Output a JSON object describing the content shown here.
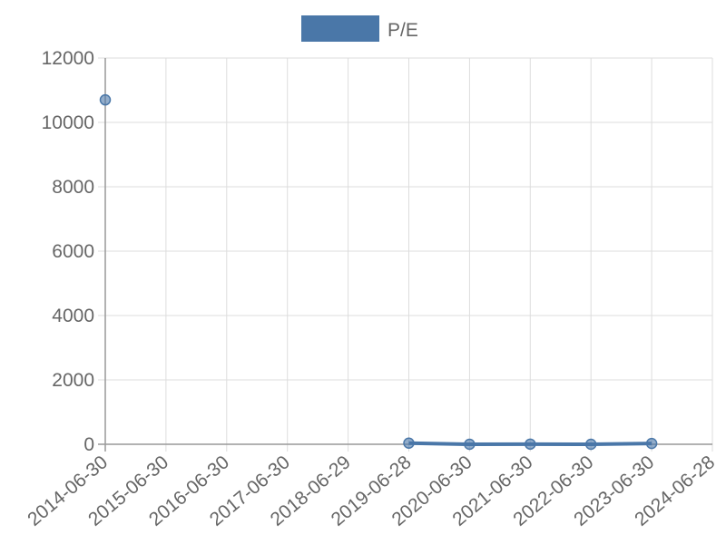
{
  "chart_data": {
    "type": "line",
    "categories": [
      "2014-06-30",
      "2015-06-30",
      "2016-06-30",
      "2017-06-30",
      "2018-06-29",
      "2019-06-28",
      "2020-06-30",
      "2021-06-30",
      "2022-06-30",
      "2023-06-30",
      "2024-06-28"
    ],
    "series": [
      {
        "name": "P/E",
        "color": "#4a77a8",
        "values": [
          10700,
          null,
          null,
          null,
          null,
          35,
          0,
          5,
          0,
          25,
          null
        ]
      }
    ],
    "ylim": [
      0,
      12000
    ],
    "yticks": [
      0,
      2000,
      4000,
      6000,
      8000,
      10000,
      12000
    ],
    "grid": true,
    "legend": "top"
  }
}
